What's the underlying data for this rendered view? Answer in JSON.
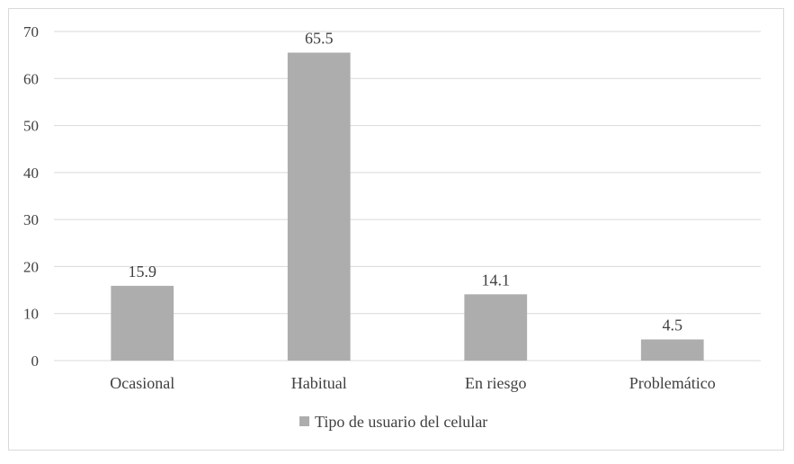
{
  "chart_data": {
    "type": "bar",
    "categories": [
      "Ocasional",
      "Habitual",
      "En riesgo",
      "Problemático"
    ],
    "series": [
      {
        "name": "Tipo de usuario del celular",
        "values": [
          15.9,
          65.5,
          14.1,
          4.5
        ],
        "color": "#adadad"
      }
    ],
    "data_labels": [
      "15.9",
      "65.5",
      "14.1",
      "4.5"
    ],
    "ylim": [
      0,
      70
    ],
    "yticks": [
      0,
      10,
      20,
      30,
      40,
      50,
      60,
      70
    ],
    "grid": true,
    "legend_position": "bottom",
    "gridline_color": "#d9d9d9"
  }
}
